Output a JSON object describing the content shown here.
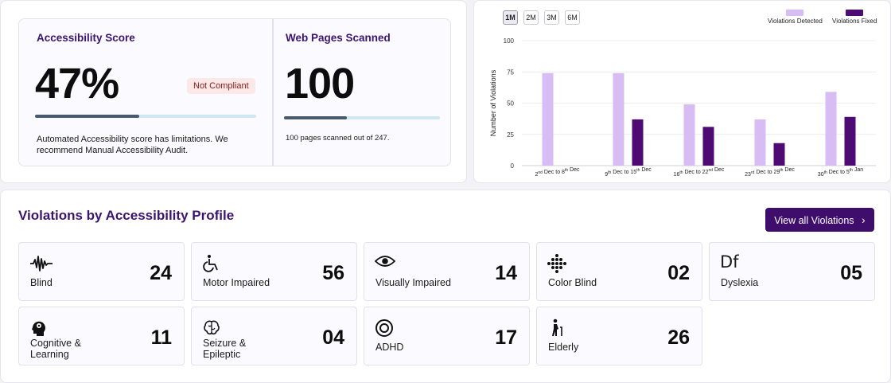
{
  "score_card": {
    "title": "Accessibility Score",
    "value": "47%",
    "progress": 0.47,
    "badge": "Not Compliant",
    "note_line1": "Automated Accessibility score has limitations. We",
    "note_line2": "recommend Manual Accessibility Audit."
  },
  "pages_card": {
    "title": "Web Pages Scanned",
    "value": "100",
    "progress": 0.405,
    "note": "100 pages scanned out of 247."
  },
  "range_buttons": [
    "1M",
    "2M",
    "3M",
    "6M"
  ],
  "active_range": "1M",
  "colors": {
    "detected": "#d8bdf5",
    "fixed": "#4d0b73",
    "accent": "#3f0e6d",
    "title": "#3b1470"
  },
  "chart_data": {
    "type": "bar",
    "ylabel": "Number of Violations",
    "ylim": [
      0,
      100
    ],
    "yticks": [
      "0",
      "25",
      "50",
      "75",
      "100"
    ],
    "categories": [
      {
        "base_a": "2",
        "sup_a": "nd",
        "mid": " Dec to ",
        "base_b": "8",
        "sup_b": "th",
        "end": " Dec"
      },
      {
        "base_a": "9",
        "sup_a": "th",
        "mid": " Dec to ",
        "base_b": "15",
        "sup_b": "th",
        "end": " Dec"
      },
      {
        "base_a": "16",
        "sup_a": "th",
        "mid": " Dec to ",
        "base_b": "22",
        "sup_b": "nd",
        "end": " Dec"
      },
      {
        "base_a": "23",
        "sup_a": "rd",
        "mid": " Dec to ",
        "base_b": "29",
        "sup_b": "th",
        "end": " Dec"
      },
      {
        "base_a": "30",
        "sup_a": "th",
        "mid": " Dec to ",
        "base_b": "5",
        "sup_b": "th",
        "end": " Jan"
      }
    ],
    "series": [
      {
        "name": "Violations Detected",
        "values": [
          74,
          74,
          49,
          37,
          59
        ]
      },
      {
        "name": "Violations Fixed",
        "values": [
          0,
          37,
          31,
          18,
          39
        ]
      }
    ],
    "legend": "top-right",
    "grid": true
  },
  "profile": {
    "title": "Violations by Accessibility Profile",
    "view_all": "View all Violations",
    "view_all_arrow": "›",
    "tiles": [
      {
        "label": "Blind",
        "label2": "",
        "count": "24",
        "icon": "sound-wave-icon"
      },
      {
        "label": "Motor Impaired",
        "label2": "",
        "count": "56",
        "icon": "wheelchair-icon"
      },
      {
        "label": "Visually Impaired",
        "label2": "",
        "count": "14",
        "icon": "eye-icon"
      },
      {
        "label": "Color Blind",
        "label2": "",
        "count": "02",
        "icon": "color-dots-icon"
      },
      {
        "label": "Dyslexia",
        "label2": "",
        "count": "05",
        "icon": "dyslexia-df-icon",
        "icon_text": "Df"
      },
      {
        "label": "Cognitive &",
        "label2": "Learning",
        "count": "11",
        "icon": "brain-head-icon"
      },
      {
        "label": "Seizure &",
        "label2": "Epileptic",
        "count": "04",
        "icon": "brain-icon"
      },
      {
        "label": "ADHD",
        "label2": "",
        "count": "17",
        "icon": "target-icon"
      },
      {
        "label": "Elderly",
        "label2": "",
        "count": "26",
        "icon": "elderly-person-icon"
      }
    ]
  }
}
